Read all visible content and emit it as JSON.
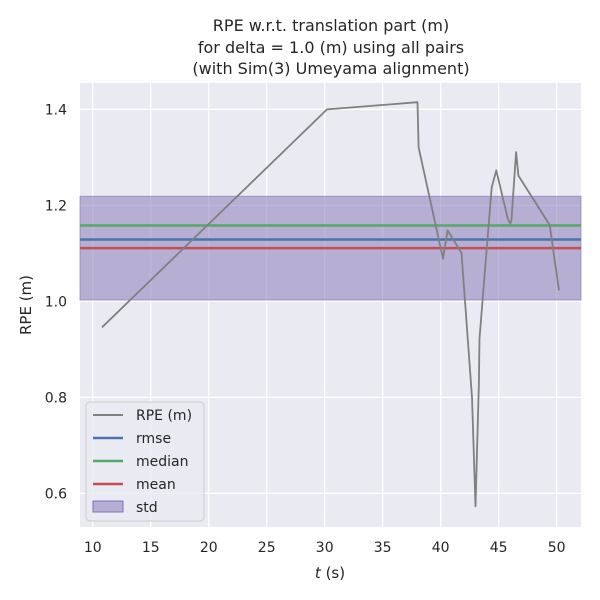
{
  "chart_data": {
    "type": "line",
    "title_lines": [
      "RPE w.r.t. translation part (m)",
      "for delta = 1.0 (m) using all pairs",
      "(with Sim(3) Umeyama alignment)"
    ],
    "xlabel_var": "t",
    "xlabel_unit": " (s)",
    "ylabel": "RPE (m)",
    "xlim": [
      8.9,
      52.1
    ],
    "ylim": [
      0.53,
      1.455
    ],
    "xticks": [
      10,
      15,
      20,
      25,
      30,
      35,
      40,
      45,
      50
    ],
    "xtick_labels": [
      "10",
      "15",
      "20",
      "25",
      "30",
      "35",
      "40",
      "45",
      "50"
    ],
    "yticks": [
      0.6,
      0.8,
      1.0,
      1.2,
      1.4
    ],
    "ytick_labels": [
      "0.6",
      "0.8",
      "1.0",
      "1.2",
      "1.4"
    ],
    "grid": true,
    "legend_position": "lower-left",
    "series": [
      {
        "name": "RPE (m)",
        "color": "#808080",
        "x": [
          10.8,
          30.2,
          38.0,
          38.1,
          40.2,
          40.6,
          41.8,
          42.7,
          43.0,
          43.3,
          43.35,
          44.4,
          44.8,
          45.8,
          46.0,
          46.1,
          46.5,
          46.7,
          49.4,
          50.2
        ],
        "y": [
          0.946,
          1.4,
          1.415,
          1.321,
          1.089,
          1.148,
          1.101,
          0.8,
          0.573,
          0.83,
          0.923,
          1.238,
          1.273,
          1.171,
          1.162,
          1.168,
          1.311,
          1.262,
          1.159,
          1.023
        ]
      }
    ],
    "stats": {
      "rmse": {
        "label": "rmse",
        "value": 1.129,
        "color": "#4c72b0"
      },
      "median": {
        "label": "median",
        "value": 1.158,
        "color": "#55a868"
      },
      "mean": {
        "label": "mean",
        "value": 1.111,
        "color": "#c44e52"
      },
      "std": {
        "label": "std",
        "lower": 1.003,
        "upper": 1.219,
        "color": "#8172b3"
      }
    },
    "legend_entries": [
      "RPE (m)",
      "rmse",
      "median",
      "mean",
      "std"
    ]
  },
  "colors": {
    "plot_background": "#eaeaf2",
    "grid": "#ffffff",
    "text": "#262626"
  }
}
